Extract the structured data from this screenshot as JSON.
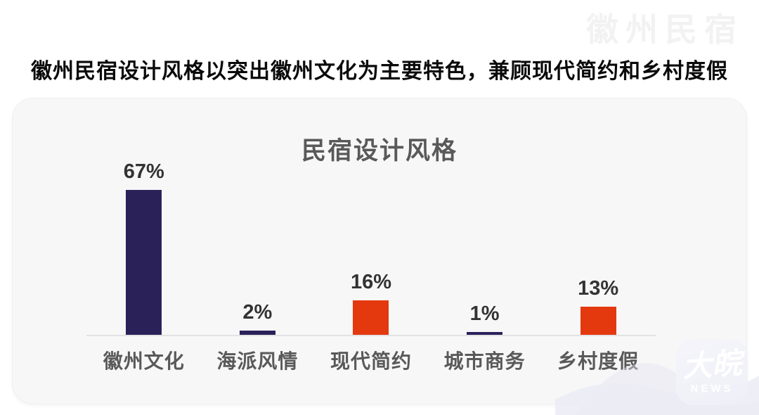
{
  "watermark": {
    "brand": "徽州民宿"
  },
  "header": {
    "title": "徽州民宿设计风格以突出徽州文化为主要特色，兼顾现代简约和乡村度假"
  },
  "chart_data": {
    "type": "bar",
    "title": "民宿设计风格",
    "categories": [
      "徽州文化",
      "海派风情",
      "现代简约",
      "城市商务",
      "乡村度假"
    ],
    "values": [
      67,
      2,
      16,
      1,
      13
    ],
    "unit": "%",
    "bar_colors": [
      "#2A2159",
      "#2A2159",
      "#E4380F",
      "#2A2159",
      "#E4380F"
    ],
    "ylim": [
      0,
      70
    ],
    "grid": false,
    "legend": false,
    "value_label_color": "#333333",
    "category_label_color": "#595959",
    "axis_line_color": "#e2e2e4"
  },
  "logo": {
    "name": "大皖",
    "sub": "NEWS"
  }
}
